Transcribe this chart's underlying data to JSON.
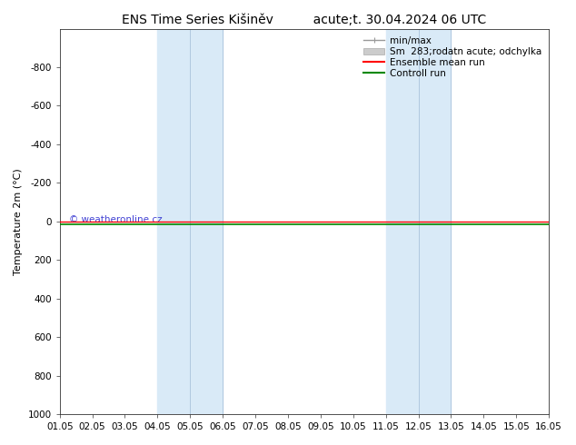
{
  "title_left": "ENS Time Series Kišiněv",
  "title_right": "acute;t. 30.04.2024 06 UTC",
  "ylabel": "Temperature 2m (°C)",
  "watermark": "© weatheronline.cz",
  "ylim": [
    -1000,
    1000
  ],
  "yticks": [
    -800,
    -600,
    -400,
    -200,
    0,
    200,
    400,
    600,
    800,
    1000
  ],
  "xtick_labels": [
    "01.05",
    "02.05",
    "03.05",
    "04.05",
    "05.05",
    "06.05",
    "07.05",
    "08.05",
    "09.05",
    "10.05",
    "11.05",
    "12.05",
    "13.05",
    "14.05",
    "15.05",
    "16.05"
  ],
  "shaded_regions": [
    {
      "xstart": 3.0,
      "xend": 5.0,
      "color": "#d9eaf7"
    },
    {
      "xstart": 10.0,
      "xend": 12.0,
      "color": "#d9eaf7"
    }
  ],
  "vertical_lines": [
    {
      "x": 4.0,
      "color": "#b0c8e0",
      "lw": 0.7
    },
    {
      "x": 5.0,
      "color": "#b0c8e0",
      "lw": 0.7
    },
    {
      "x": 11.0,
      "color": "#b0c8e0",
      "lw": 0.7
    },
    {
      "x": 12.0,
      "color": "#b0c8e0",
      "lw": 0.7
    }
  ],
  "ensemble_mean_color": "#ff0000",
  "control_run_color": "#008800",
  "minmax_color": "#999999",
  "spread_color": "#cccccc",
  "background_color": "#ffffff",
  "plot_bg_color": "#ffffff",
  "legend_entries": [
    "min/max",
    "Sm  283;rodatn acute; odchylka",
    "Ensemble mean run",
    "Controll run"
  ],
  "title_fontsize": 10,
  "axis_fontsize": 8,
  "tick_fontsize": 7.5,
  "legend_fontsize": 7.5
}
